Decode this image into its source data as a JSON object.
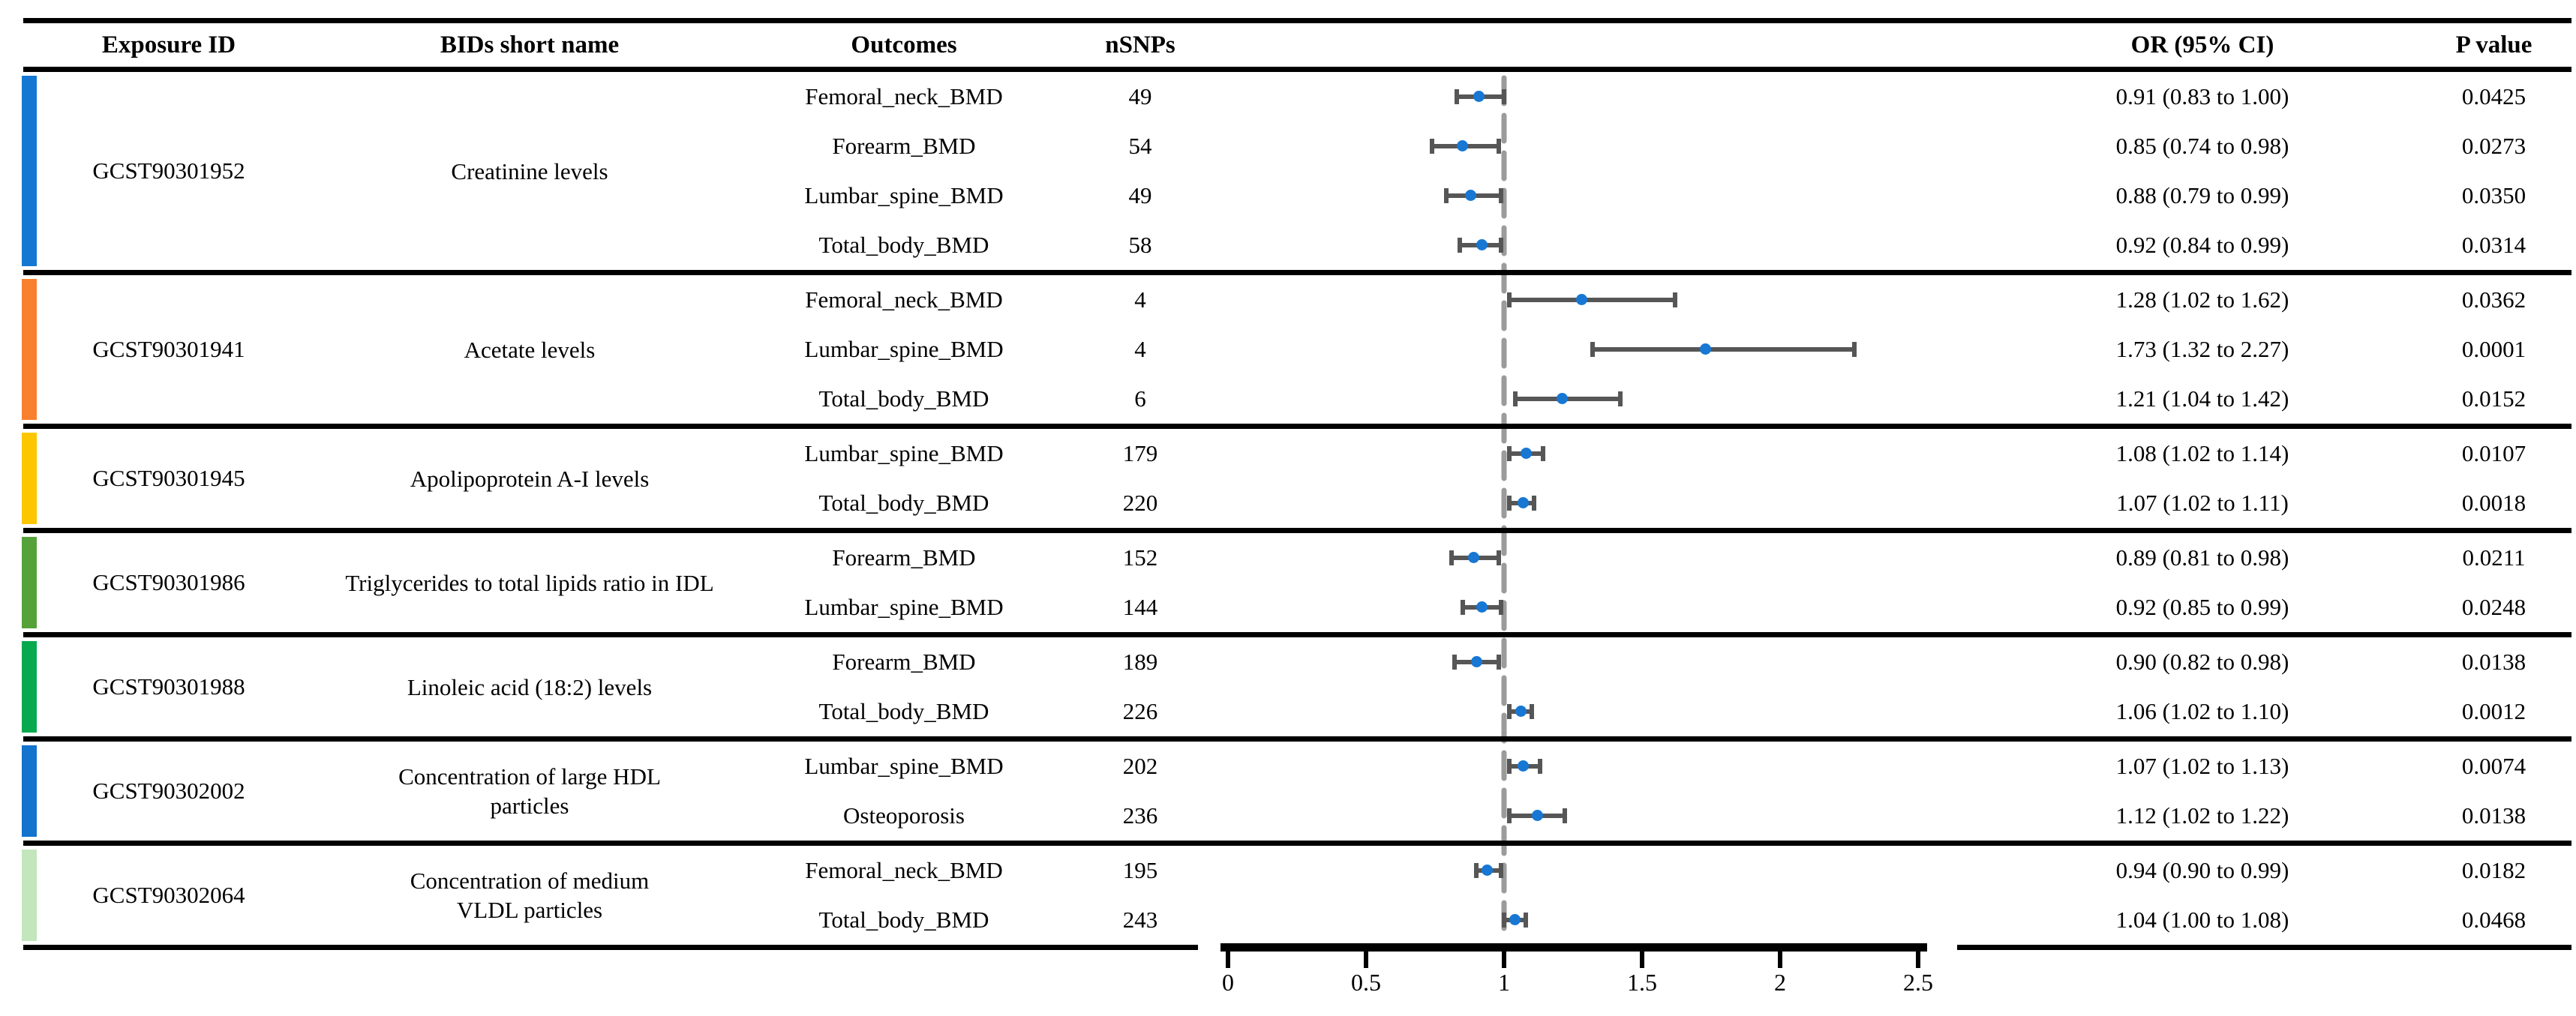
{
  "table": {
    "headers": {
      "exposure_id": "Exposure ID",
      "bids_short_name": "BIDs short name",
      "outcomes": "Outcomes",
      "nsnps": "nSNPs",
      "or_ci": "OR (95% CI)",
      "p_value": "P value"
    },
    "groups": [
      {
        "exposure_id": "GCST90301952",
        "bids_lines": [
          "Creatinine levels"
        ],
        "color": "#1478d2",
        "rows": [
          {
            "outcome": "Femoral_neck_BMD",
            "nsnps": "49",
            "or": 0.91,
            "lo": 0.83,
            "hi": 1.0,
            "or_ci": "0.91 (0.83 to 1.00)",
            "p": "0.0425"
          },
          {
            "outcome": "Forearm_BMD",
            "nsnps": "54",
            "or": 0.85,
            "lo": 0.74,
            "hi": 0.98,
            "or_ci": "0.85 (0.74 to 0.98)",
            "p": "0.0273"
          },
          {
            "outcome": "Lumbar_spine_BMD",
            "nsnps": "49",
            "or": 0.88,
            "lo": 0.79,
            "hi": 0.99,
            "or_ci": "0.88 (0.79 to 0.99)",
            "p": "0.0350"
          },
          {
            "outcome": "Total_body_BMD",
            "nsnps": "58",
            "or": 0.92,
            "lo": 0.84,
            "hi": 0.99,
            "or_ci": "0.92 (0.84 to 0.99)",
            "p": "0.0314"
          }
        ]
      },
      {
        "exposure_id": "GCST90301941",
        "bids_lines": [
          "Acetate levels"
        ],
        "color": "#f9802e",
        "rows": [
          {
            "outcome": "Femoral_neck_BMD",
            "nsnps": "4",
            "or": 1.28,
            "lo": 1.02,
            "hi": 1.62,
            "or_ci": "1.28 (1.02 to 1.62)",
            "p": "0.0362"
          },
          {
            "outcome": "Lumbar_spine_BMD",
            "nsnps": "4",
            "or": 1.73,
            "lo": 1.32,
            "hi": 2.27,
            "or_ci": "1.73 (1.32 to 2.27)",
            "p": "0.0001"
          },
          {
            "outcome": "Total_body_BMD",
            "nsnps": "6",
            "or": 1.21,
            "lo": 1.04,
            "hi": 1.42,
            "or_ci": "1.21 (1.04 to 1.42)",
            "p": "0.0152"
          }
        ]
      },
      {
        "exposure_id": "GCST90301945",
        "bids_lines": [
          "Apolipoprotein A-I levels"
        ],
        "color": "#fcc600",
        "rows": [
          {
            "outcome": "Lumbar_spine_BMD",
            "nsnps": "179",
            "or": 1.08,
            "lo": 1.02,
            "hi": 1.14,
            "or_ci": "1.08 (1.02 to 1.14)",
            "p": "0.0107"
          },
          {
            "outcome": "Total_body_BMD",
            "nsnps": "220",
            "or": 1.07,
            "lo": 1.02,
            "hi": 1.11,
            "or_ci": "1.07 (1.02 to 1.11)",
            "p": "0.0018"
          }
        ]
      },
      {
        "exposure_id": "GCST90301986",
        "bids_lines": [
          "Triglycerides to total lipids ratio in IDL"
        ],
        "color": "#55a23a",
        "rows": [
          {
            "outcome": "Forearm_BMD",
            "nsnps": "152",
            "or": 0.89,
            "lo": 0.81,
            "hi": 0.98,
            "or_ci": "0.89 (0.81 to 0.98)",
            "p": "0.0211"
          },
          {
            "outcome": "Lumbar_spine_BMD",
            "nsnps": "144",
            "or": 0.92,
            "lo": 0.85,
            "hi": 0.99,
            "or_ci": "0.92 (0.85 to 0.99)",
            "p": "0.0248"
          }
        ]
      },
      {
        "exposure_id": "GCST90301988",
        "bids_lines": [
          "Linoleic acid (18:2) levels"
        ],
        "color": "#07a94f",
        "rows": [
          {
            "outcome": "Forearm_BMD",
            "nsnps": "189",
            "or": 0.9,
            "lo": 0.82,
            "hi": 0.98,
            "or_ci": "0.90 (0.82 to 0.98)",
            "p": "0.0138"
          },
          {
            "outcome": "Total_body_BMD",
            "nsnps": "226",
            "or": 1.06,
            "lo": 1.02,
            "hi": 1.1,
            "or_ci": "1.06 (1.02 to 1.10)",
            "p": "0.0012"
          }
        ]
      },
      {
        "exposure_id": "GCST90302002",
        "bids_lines": [
          "Concentration of large HDL",
          "particles"
        ],
        "color": "#1373cd",
        "rows": [
          {
            "outcome": "Lumbar_spine_BMD",
            "nsnps": "202",
            "or": 1.07,
            "lo": 1.02,
            "hi": 1.13,
            "or_ci": "1.07 (1.02 to 1.13)",
            "p": "0.0074"
          },
          {
            "outcome": "Osteoporosis",
            "nsnps": "236",
            "or": 1.12,
            "lo": 1.02,
            "hi": 1.22,
            "or_ci": "1.12 (1.02 to 1.22)",
            "p": "0.0138"
          }
        ]
      },
      {
        "exposure_id": "GCST90302064",
        "bids_lines": [
          "Concentration of medium",
          "VLDL particles"
        ],
        "color": "#c3e6bd",
        "rows": [
          {
            "outcome": "Femoral_neck_BMD",
            "nsnps": "195",
            "or": 0.94,
            "lo": 0.9,
            "hi": 0.99,
            "or_ci": "0.94 (0.90 to 0.99)",
            "p": "0.0182"
          },
          {
            "outcome": "Total_body_BMD",
            "nsnps": "243",
            "or": 1.04,
            "lo": 1.0,
            "hi": 1.08,
            "or_ci": "1.04 (1.00 to 1.08)",
            "p": "0.0468"
          }
        ]
      }
    ]
  },
  "chart_data": {
    "type": "scatter",
    "variant": "forest-plot",
    "title": "",
    "xlabel": "",
    "xlim": [
      0,
      2.5
    ],
    "x_ticks": [
      0,
      0.5,
      1,
      1.5,
      2,
      2.5
    ],
    "x_tick_labels": [
      "0",
      "0.5",
      "1",
      "1.5",
      "2",
      "2.5"
    ],
    "reference_line_x": 1,
    "grid": false,
    "marker_color": "#1777d3",
    "ci_color": "#565656",
    "reference_line_color": "#9b9b9b",
    "points": [
      {
        "exposure": "GCST90301952",
        "outcome": "Femoral_neck_BMD",
        "or": 0.91,
        "ci_low": 0.83,
        "ci_high": 1.0
      },
      {
        "exposure": "GCST90301952",
        "outcome": "Forearm_BMD",
        "or": 0.85,
        "ci_low": 0.74,
        "ci_high": 0.98
      },
      {
        "exposure": "GCST90301952",
        "outcome": "Lumbar_spine_BMD",
        "or": 0.88,
        "ci_low": 0.79,
        "ci_high": 0.99
      },
      {
        "exposure": "GCST90301952",
        "outcome": "Total_body_BMD",
        "or": 0.92,
        "ci_low": 0.84,
        "ci_high": 0.99
      },
      {
        "exposure": "GCST90301941",
        "outcome": "Femoral_neck_BMD",
        "or": 1.28,
        "ci_low": 1.02,
        "ci_high": 1.62
      },
      {
        "exposure": "GCST90301941",
        "outcome": "Lumbar_spine_BMD",
        "or": 1.73,
        "ci_low": 1.32,
        "ci_high": 2.27
      },
      {
        "exposure": "GCST90301941",
        "outcome": "Total_body_BMD",
        "or": 1.21,
        "ci_low": 1.04,
        "ci_high": 1.42
      },
      {
        "exposure": "GCST90301945",
        "outcome": "Lumbar_spine_BMD",
        "or": 1.08,
        "ci_low": 1.02,
        "ci_high": 1.14
      },
      {
        "exposure": "GCST90301945",
        "outcome": "Total_body_BMD",
        "or": 1.07,
        "ci_low": 1.02,
        "ci_high": 1.11
      },
      {
        "exposure": "GCST90301986",
        "outcome": "Forearm_BMD",
        "or": 0.89,
        "ci_low": 0.81,
        "ci_high": 0.98
      },
      {
        "exposure": "GCST90301986",
        "outcome": "Lumbar_spine_BMD",
        "or": 0.92,
        "ci_low": 0.85,
        "ci_high": 0.99
      },
      {
        "exposure": "GCST90301988",
        "outcome": "Forearm_BMD",
        "or": 0.9,
        "ci_low": 0.82,
        "ci_high": 0.98
      },
      {
        "exposure": "GCST90301988",
        "outcome": "Total_body_BMD",
        "or": 1.06,
        "ci_low": 1.02,
        "ci_high": 1.1
      },
      {
        "exposure": "GCST90302002",
        "outcome": "Lumbar_spine_BMD",
        "or": 1.07,
        "ci_low": 1.02,
        "ci_high": 1.13
      },
      {
        "exposure": "GCST90302002",
        "outcome": "Osteoporosis",
        "or": 1.12,
        "ci_low": 1.02,
        "ci_high": 1.22
      },
      {
        "exposure": "GCST90302064",
        "outcome": "Femoral_neck_BMD",
        "or": 0.94,
        "ci_low": 0.9,
        "ci_high": 0.99
      },
      {
        "exposure": "GCST90302064",
        "outcome": "Total_body_BMD",
        "or": 1.04,
        "ci_low": 1.0,
        "ci_high": 1.08
      }
    ]
  }
}
